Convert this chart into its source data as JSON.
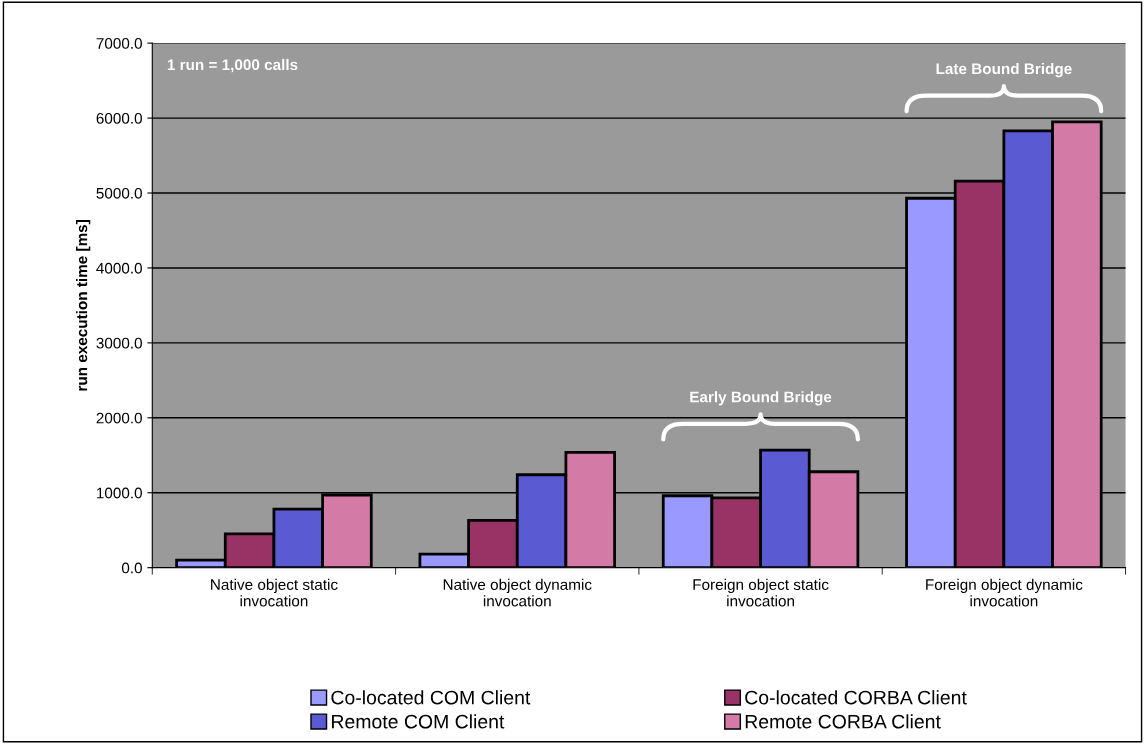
{
  "chart_data": {
    "type": "bar",
    "categories": [
      "Native object static invocation",
      "Native object dynamic invocation",
      "Foreign object static invocation",
      "Foreign object dynamic invocation"
    ],
    "series": [
      {
        "name": "Co-located COM Client",
        "color": "#9999ff",
        "values": [
          100,
          180,
          960,
          4930
        ]
      },
      {
        "name": "Co-located CORBA Client",
        "color": "#993366",
        "values": [
          450,
          630,
          930,
          5160
        ]
      },
      {
        "name": "Remote COM Client",
        "color": "#5a5ad2",
        "values": [
          780,
          1240,
          1570,
          5830
        ]
      },
      {
        "name": "Remote CORBA Client",
        "color": "#d47aa6",
        "values": [
          970,
          1540,
          1280,
          5950
        ]
      }
    ],
    "ylabel": "run execution time [ms]",
    "ylim": [
      0,
      7000
    ],
    "yticks": [
      {
        "value": 0,
        "label": "0.0"
      },
      {
        "value": 1000,
        "label": "1000.0"
      },
      {
        "value": 2000,
        "label": "2000.0"
      },
      {
        "value": 3000,
        "label": "3000.0"
      },
      {
        "value": 4000,
        "label": "4000.0"
      },
      {
        "value": 5000,
        "label": "5000.0"
      },
      {
        "value": 6000,
        "label": "6000.0"
      },
      {
        "value": 7000,
        "label": "7000.0"
      }
    ],
    "grid": "y",
    "legend": "bottom",
    "annotations": [
      "1 run = 1,000 calls",
      "Early Bound Bridge",
      "Late Bound Bridge"
    ]
  }
}
